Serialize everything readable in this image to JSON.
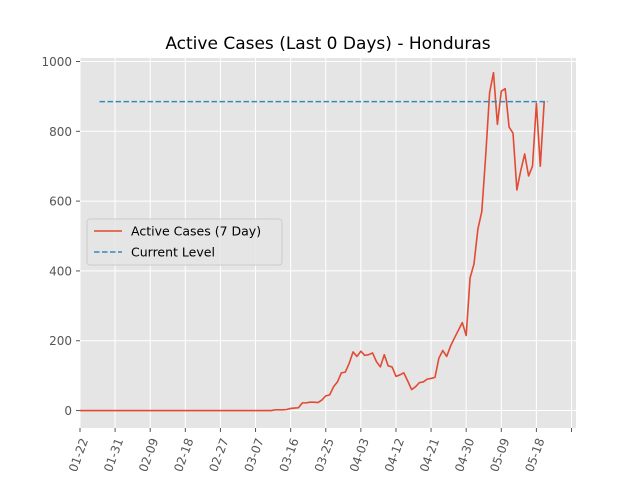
{
  "chart_data": {
    "type": "line",
    "title": "Active Cases (Last 0 Days) - Honduras",
    "xlabel": "",
    "ylabel": "",
    "grid": true,
    "legend_placement": "center-left",
    "colors": {
      "series": "#e24a33",
      "reference": "#348abd",
      "background": "#e5e5e5",
      "grid": "#ffffff"
    },
    "x_axis": {
      "start": "2020-01-22",
      "end": "2020-05-22",
      "tick_dates": [
        "2020-01-22",
        "2020-01-31",
        "2020-02-09",
        "2020-02-18",
        "2020-02-27",
        "2020-03-07",
        "2020-03-16",
        "2020-03-25",
        "2020-04-03",
        "2020-04-12",
        "2020-04-21",
        "2020-04-30",
        "2020-05-09",
        "2020-05-18",
        "2020-05-27"
      ],
      "tick_labels": [
        "01-22",
        "01-31",
        "02-09",
        "02-18",
        "02-27",
        "03-07",
        "03-16",
        "03-25",
        "04-03",
        "04-12",
        "04-21",
        "04-30",
        "05-09",
        "05-18",
        ""
      ]
    },
    "y_axis": {
      "min": -50,
      "max": 1010,
      "ticks": [
        0,
        200,
        400,
        600,
        800,
        1000
      ],
      "tick_labels": [
        "0",
        "200",
        "400",
        "600",
        "800",
        "1000"
      ]
    },
    "series": [
      {
        "name": "Active Cases (7 Day)",
        "style": "solid",
        "points": [
          [
            "2020-01-22",
            0
          ],
          [
            "2020-02-01",
            0
          ],
          [
            "2020-02-10",
            0
          ],
          [
            "2020-02-20",
            0
          ],
          [
            "2020-03-01",
            0
          ],
          [
            "2020-03-07",
            0
          ],
          [
            "2020-03-11",
            0
          ],
          [
            "2020-03-12",
            2
          ],
          [
            "2020-03-13",
            2
          ],
          [
            "2020-03-14",
            2
          ],
          [
            "2020-03-15",
            3
          ],
          [
            "2020-03-16",
            6
          ],
          [
            "2020-03-17",
            7
          ],
          [
            "2020-03-18",
            8
          ],
          [
            "2020-03-19",
            22
          ],
          [
            "2020-03-20",
            22
          ],
          [
            "2020-03-21",
            24
          ],
          [
            "2020-03-22",
            24
          ],
          [
            "2020-03-23",
            23
          ],
          [
            "2020-03-24",
            30
          ],
          [
            "2020-03-25",
            42
          ],
          [
            "2020-03-26",
            45
          ],
          [
            "2020-03-27",
            68
          ],
          [
            "2020-03-28",
            82
          ],
          [
            "2020-03-29",
            108
          ],
          [
            "2020-03-30",
            110
          ],
          [
            "2020-03-31",
            135
          ],
          [
            "2020-04-01",
            168
          ],
          [
            "2020-04-02",
            155
          ],
          [
            "2020-04-03",
            170
          ],
          [
            "2020-04-04",
            158
          ],
          [
            "2020-04-05",
            160
          ],
          [
            "2020-04-06",
            165
          ],
          [
            "2020-04-07",
            140
          ],
          [
            "2020-04-08",
            125
          ],
          [
            "2020-04-09",
            160
          ],
          [
            "2020-04-10",
            128
          ],
          [
            "2020-04-11",
            125
          ],
          [
            "2020-04-12",
            98
          ],
          [
            "2020-04-13",
            102
          ],
          [
            "2020-04-14",
            108
          ],
          [
            "2020-04-15",
            85
          ],
          [
            "2020-04-16",
            60
          ],
          [
            "2020-04-17",
            68
          ],
          [
            "2020-04-18",
            80
          ],
          [
            "2020-04-19",
            82
          ],
          [
            "2020-04-20",
            90
          ],
          [
            "2020-04-21",
            92
          ],
          [
            "2020-04-22",
            95
          ],
          [
            "2020-04-23",
            150
          ],
          [
            "2020-04-24",
            172
          ],
          [
            "2020-04-25",
            155
          ],
          [
            "2020-04-26",
            185
          ],
          [
            "2020-04-27",
            208
          ],
          [
            "2020-04-28",
            230
          ],
          [
            "2020-04-29",
            252
          ],
          [
            "2020-04-30",
            215
          ],
          [
            "2020-05-01",
            380
          ],
          [
            "2020-05-02",
            420
          ],
          [
            "2020-05-03",
            520
          ],
          [
            "2020-05-04",
            570
          ],
          [
            "2020-05-05",
            730
          ],
          [
            "2020-05-06",
            910
          ],
          [
            "2020-05-07",
            968
          ],
          [
            "2020-05-08",
            820
          ],
          [
            "2020-05-09",
            915
          ],
          [
            "2020-05-10",
            922
          ],
          [
            "2020-05-11",
            812
          ],
          [
            "2020-05-12",
            795
          ],
          [
            "2020-05-13",
            632
          ],
          [
            "2020-05-14",
            688
          ],
          [
            "2020-05-15",
            735
          ],
          [
            "2020-05-16",
            672
          ],
          [
            "2020-05-17",
            700
          ],
          [
            "2020-05-18",
            880
          ],
          [
            "2020-05-19",
            700
          ],
          [
            "2020-05-20",
            885
          ]
        ]
      },
      {
        "name": "Current Level",
        "style": "dashed",
        "points": [
          [
            "2020-01-27",
            885
          ],
          [
            "2020-05-21",
            885
          ]
        ]
      }
    ]
  }
}
